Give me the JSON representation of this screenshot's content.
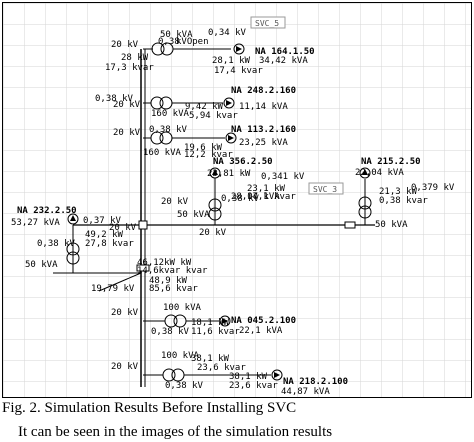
{
  "diagram": {
    "svc_tags": [
      "SVC_5",
      "SVC_3"
    ],
    "main_feeder": {
      "top_label": "20 kV",
      "top_open": "kVOpen",
      "top_kva": "50 kVA",
      "top_v": "0,38"
    },
    "transformers": [
      {
        "id": "NA 164.1.50",
        "feed_kv": "20 kV",
        "kva": "50 kVA",
        "lv": "0,38",
        "flow_p": "28 kW",
        "flow_q": "17,3 kvar",
        "load_v": "0,34 kV",
        "load_p": "28,1 kW",
        "load_s": "34,42 kVA",
        "load_q": "17,4 kvar"
      },
      {
        "id": "NA 248.2.160",
        "feed_kv": "20 kV",
        "lv": "0,38 kV",
        "kva": "160 kVA",
        "load_p": "9,42 kW",
        "load_s": "11,14 kVA",
        "load_q": "5,94 kvar"
      },
      {
        "id": "NA 113.2.160",
        "feed_kv": "20 kV",
        "lv": "0,38 kV",
        "kva": "160 kVA",
        "load_p": "19,6 kW",
        "load_s": "23,25 kVA",
        "load_q": "12,2 kvar"
      },
      {
        "id": "NA 356.2.50",
        "load_p": "23,81 kW",
        "load_v": "0,341 kV",
        "mid_p": "23,1 kW",
        "mid_q": "14,1 kvar",
        "load_s": "28,07 kVA",
        "feed_kv": "20 kV",
        "kva": "50 kVA",
        "lv": "0,38 kV",
        "bus_kv": "20 kV"
      },
      {
        "id": "NA 215.2.50",
        "load_s": "22,04 kVA",
        "load_v": "0,379 kV",
        "mid_p": "21,3 kW",
        "mid_q": "0,38 kvar",
        "kva": "50 kVA"
      },
      {
        "id": "NA 232.2.50",
        "load_s": "53,27 kVA",
        "load_v": "0,37 kV",
        "lv": "0,38 kV",
        "load_p": "49,2 kW",
        "load_q": "27,8 kvar",
        "kva": "50 kVA",
        "feed_kv": "20 kV"
      },
      {
        "id": "NA 045.2.100",
        "feed_kv": "20 kV",
        "kva": "100 kVA",
        "lv": "0,38 kV",
        "load_p": "18,1 kW",
        "load_s": "22,1 kVA",
        "load_q": "11,6 kvar"
      },
      {
        "id": "NA 218.2.100",
        "feed_kv": "20 kV",
        "kva": "100 kVA",
        "lv": "0,38 kV",
        "load_p": "38,1 kW",
        "load_s": "44,87 kVA",
        "load_q": "23,6 kvar"
      }
    ],
    "junction": {
      "upper": "46,12kW kW",
      "upper2": "14,6kvar kvar",
      "mid_p": "48,9 kW",
      "mid_q": "85,6 kvar",
      "left_v": "19,79 kV",
      "feed_kv": "20 kV"
    },
    "bottom_feed": {
      "kv": "20 kV",
      "p": "38,1 kW",
      "q": "23,6 kvar"
    }
  },
  "caption": "Fig. 2. Simulation Results Before Installing SVC",
  "continuation": "It can be seen in the images of the simulation results"
}
